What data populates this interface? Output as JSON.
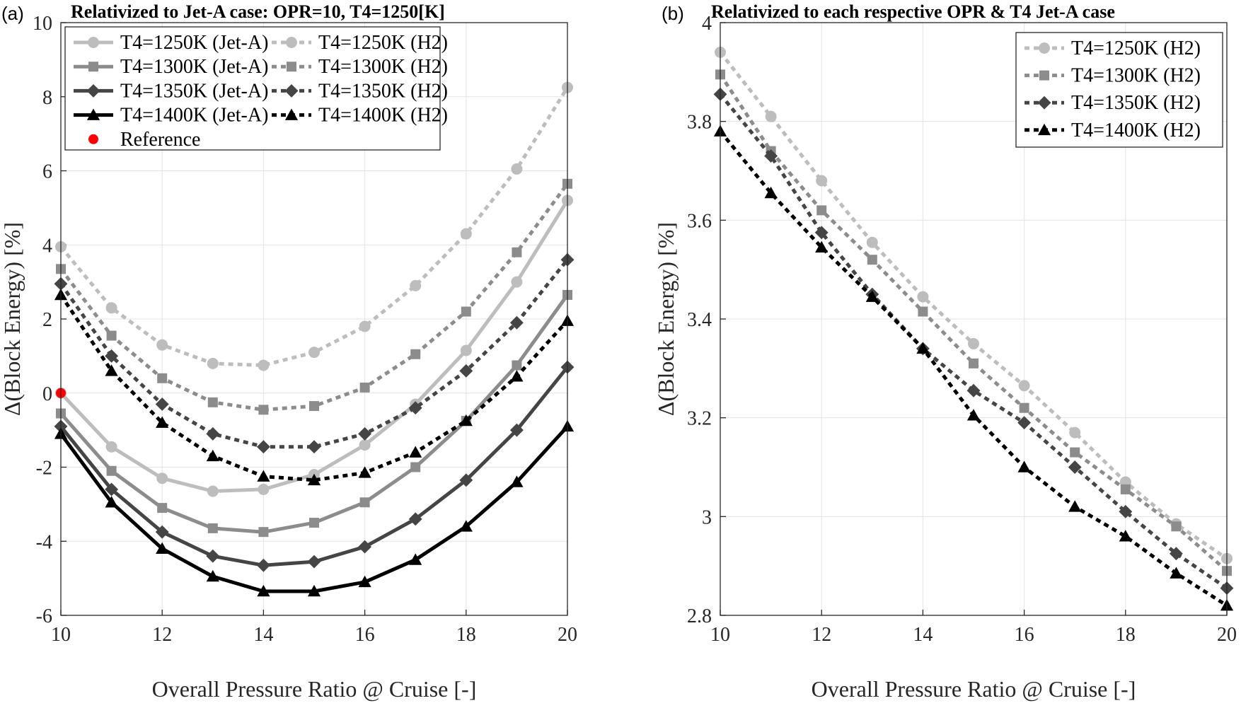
{
  "chart_data": [
    {
      "panel_label": "(a)",
      "type": "line",
      "title": "Relativized to Jet-A case: OPR=10, T4=1250[K]",
      "xlabel": "Overall Pressure Ratio @ Cruise [-]",
      "ylabel": "Δ(Block Energy) [%]",
      "xlim": [
        10,
        20
      ],
      "ylim": [
        -6,
        10
      ],
      "xticks": [
        10,
        12,
        14,
        16,
        18,
        20
      ],
      "yticks": [
        -6,
        -4,
        -2,
        0,
        2,
        4,
        6,
        8,
        10
      ],
      "grid": true,
      "legend_placement": "top-left",
      "legend_columns": 2,
      "x": [
        10,
        11,
        12,
        13,
        14,
        15,
        16,
        17,
        18,
        19,
        20
      ],
      "series": [
        {
          "name": "T4=1250K (Jet-A)",
          "color": "#bdbdbd",
          "marker": "circle",
          "dash": "solid",
          "values": [
            0.0,
            -1.45,
            -2.3,
            -2.65,
            -2.6,
            -2.2,
            -1.4,
            -0.3,
            1.15,
            3.0,
            5.2
          ]
        },
        {
          "name": "T4=1250K (H2)",
          "color": "#bdbdbd",
          "marker": "circle",
          "dash": "dotted",
          "values": [
            3.95,
            2.3,
            1.3,
            0.8,
            0.75,
            1.1,
            1.8,
            2.9,
            4.3,
            6.05,
            8.25
          ]
        },
        {
          "name": "T4=1300K (Jet-A)",
          "color": "#8c8c8c",
          "marker": "square",
          "dash": "solid",
          "values": [
            -0.55,
            -2.1,
            -3.1,
            -3.65,
            -3.75,
            -3.5,
            -2.95,
            -2.0,
            -0.75,
            0.75,
            2.65
          ]
        },
        {
          "name": "T4=1300K (H2)",
          "color": "#8c8c8c",
          "marker": "square",
          "dash": "dotted",
          "values": [
            3.35,
            1.55,
            0.4,
            -0.25,
            -0.45,
            -0.35,
            0.15,
            1.05,
            2.2,
            3.8,
            5.65
          ]
        },
        {
          "name": "T4=1350K (Jet-A)",
          "color": "#454545",
          "marker": "diamond",
          "dash": "solid",
          "values": [
            -0.9,
            -2.6,
            -3.75,
            -4.4,
            -4.65,
            -4.55,
            -4.15,
            -3.4,
            -2.35,
            -1.0,
            0.7
          ]
        },
        {
          "name": "T4=1350K (H2)",
          "color": "#454545",
          "marker": "diamond",
          "dash": "dotted",
          "values": [
            2.95,
            1.0,
            -0.3,
            -1.1,
            -1.45,
            -1.45,
            -1.1,
            -0.4,
            0.6,
            1.9,
            3.6
          ]
        },
        {
          "name": "T4=1400K (Jet-A)",
          "color": "#000000",
          "marker": "triangle",
          "dash": "solid",
          "values": [
            -1.1,
            -2.95,
            -4.2,
            -4.95,
            -5.35,
            -5.35,
            -5.1,
            -4.5,
            -3.6,
            -2.4,
            -0.9
          ]
        },
        {
          "name": "T4=1400K (H2)",
          "color": "#000000",
          "marker": "triangle",
          "dash": "dotted",
          "values": [
            2.65,
            0.6,
            -0.8,
            -1.7,
            -2.25,
            -2.35,
            -2.15,
            -1.6,
            -0.75,
            0.45,
            1.95
          ]
        },
        {
          "name": "Reference",
          "color": "#ff0000",
          "marker": "dot",
          "dash": "none",
          "x": [
            10
          ],
          "values": [
            0.0
          ]
        }
      ]
    },
    {
      "panel_label": "(b)",
      "type": "line",
      "title": "Relativized to each respective OPR & T4 Jet-A case",
      "xlabel": "Overall Pressure Ratio @ Cruise [-]",
      "ylabel": "Δ(Block Energy) [%]",
      "xlim": [
        10,
        20
      ],
      "ylim": [
        2.8,
        4.0
      ],
      "xticks": [
        10,
        12,
        14,
        16,
        18,
        20
      ],
      "yticks": [
        2.8,
        3.0,
        3.2,
        3.4,
        3.6,
        3.8,
        4.0
      ],
      "ytick_labels": [
        "2.8",
        "3",
        "3.2",
        "3.4",
        "3.6",
        "3.8",
        "4"
      ],
      "grid": true,
      "legend_placement": "top-right",
      "legend_columns": 1,
      "x": [
        10,
        11,
        12,
        13,
        14,
        15,
        16,
        17,
        18,
        19,
        20
      ],
      "series": [
        {
          "name": "T4=1250K (H2)",
          "color": "#bdbdbd",
          "marker": "circle",
          "dash": "dotted",
          "values": [
            3.94,
            3.81,
            3.68,
            3.555,
            3.445,
            3.35,
            3.265,
            3.17,
            3.07,
            2.985,
            2.915
          ]
        },
        {
          "name": "T4=1300K (H2)",
          "color": "#8c8c8c",
          "marker": "square",
          "dash": "dotted",
          "values": [
            3.895,
            3.74,
            3.62,
            3.52,
            3.415,
            3.31,
            3.22,
            3.13,
            3.055,
            2.98,
            2.89
          ]
        },
        {
          "name": "T4=1350K (H2)",
          "color": "#454545",
          "marker": "diamond",
          "dash": "dotted",
          "values": [
            3.855,
            3.73,
            3.575,
            3.45,
            3.34,
            3.255,
            3.19,
            3.1,
            3.01,
            2.925,
            2.855
          ]
        },
        {
          "name": "T4=1400K (H2)",
          "color": "#000000",
          "marker": "triangle",
          "dash": "dotted",
          "values": [
            3.78,
            3.655,
            3.545,
            3.445,
            3.34,
            3.205,
            3.1,
            3.02,
            2.96,
            2.885,
            2.82
          ]
        }
      ]
    }
  ]
}
